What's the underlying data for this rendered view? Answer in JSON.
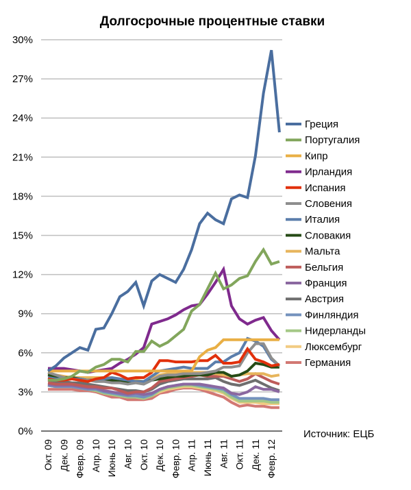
{
  "chart_data": {
    "type": "line",
    "title": "Долгосрочные процентные ставки",
    "xlabel": "",
    "ylabel": "",
    "ylim": [
      0,
      30
    ],
    "yticks": [
      "0%",
      "3%",
      "6%",
      "9%",
      "12%",
      "15%",
      "18%",
      "21%",
      "24%",
      "27%",
      "30%"
    ],
    "ytick_values": [
      0,
      3,
      6,
      9,
      12,
      15,
      18,
      21,
      24,
      27,
      30
    ],
    "xtick_labels": [
      "Окт. 09",
      "Дек. 09",
      "Февр. 09",
      "Апр. 10",
      "Июнь 10",
      "Авг. 10",
      "Окт. 10",
      "Дек. 10",
      "Февр. 10",
      "Апр. 11",
      "Июнь 11",
      "Авг. 11",
      "Окт. 11",
      "Дек. 11",
      "Февр. 12"
    ],
    "xtick_every": 2,
    "n_points": 30,
    "grid": true,
    "legend_position": "right",
    "source": "Источник: ЕЦБ",
    "series": [
      {
        "name": "Греция",
        "color": "#4A6E9F",
        "values": [
          4.6,
          5.0,
          5.6,
          6.0,
          6.4,
          6.2,
          7.8,
          7.9,
          9.0,
          10.3,
          10.7,
          11.4,
          9.6,
          11.5,
          12.0,
          11.7,
          11.4,
          12.4,
          13.9,
          15.9,
          16.7,
          16.2,
          15.9,
          17.8,
          18.1,
          17.9,
          21.1,
          25.9,
          29.2,
          22.9
        ]
      },
      {
        "name": "Португалия",
        "color": "#82A65C",
        "values": [
          3.9,
          3.9,
          4.0,
          4.2,
          4.6,
          4.5,
          4.9,
          5.1,
          5.5,
          5.5,
          5.3,
          6.1,
          6.1,
          6.9,
          6.5,
          6.8,
          7.3,
          7.8,
          9.2,
          9.7,
          10.9,
          12.1,
          10.9,
          11.2,
          11.7,
          11.9,
          13.0,
          13.9,
          12.8,
          13.0
        ]
      },
      {
        "name": "Кипр",
        "color": "#E9AF45",
        "values": [
          4.6,
          4.6,
          4.6,
          4.6,
          4.6,
          4.6,
          4.6,
          4.6,
          4.6,
          4.6,
          4.6,
          4.6,
          4.6,
          4.6,
          4.6,
          4.6,
          4.6,
          4.6,
          4.6,
          5.7,
          6.2,
          6.4,
          7.0,
          7.0,
          7.0,
          7.0,
          7.0,
          7.0,
          7.0,
          7.0
        ]
      },
      {
        "name": "Ирландия",
        "color": "#7F2A8D",
        "values": [
          4.8,
          4.8,
          4.8,
          4.7,
          4.6,
          4.5,
          4.6,
          4.7,
          4.8,
          5.2,
          5.5,
          5.9,
          6.4,
          8.2,
          8.4,
          8.6,
          8.9,
          9.3,
          9.6,
          9.7,
          10.5,
          11.4,
          12.4,
          9.6,
          8.6,
          8.2,
          8.5,
          8.7,
          7.7,
          7.0
        ]
      },
      {
        "name": "Испания",
        "color": "#E1300B",
        "values": [
          4.0,
          3.9,
          3.9,
          4.0,
          3.9,
          3.8,
          4.0,
          4.1,
          4.5,
          4.3,
          4.0,
          4.1,
          4.1,
          4.5,
          5.4,
          5.4,
          5.3,
          5.3,
          5.3,
          5.4,
          5.4,
          5.8,
          5.2,
          5.2,
          5.3,
          6.3,
          5.5,
          5.3,
          5.0,
          5.1
        ]
      },
      {
        "name": "Словения",
        "color": "#8E8E8E",
        "values": [
          4.5,
          4.3,
          4.1,
          4.0,
          3.9,
          3.9,
          3.8,
          3.8,
          3.7,
          3.7,
          3.6,
          3.7,
          3.6,
          3.9,
          4.2,
          4.3,
          4.3,
          4.4,
          4.4,
          4.4,
          4.5,
          4.6,
          4.9,
          4.9,
          5.0,
          6.0,
          6.7,
          6.7,
          5.6,
          5.0
        ]
      },
      {
        "name": "Италия",
        "color": "#5B7EAC",
        "values": [
          4.1,
          4.0,
          4.0,
          4.0,
          4.0,
          3.9,
          3.9,
          4.0,
          4.1,
          4.0,
          3.9,
          3.8,
          3.8,
          4.2,
          4.6,
          4.7,
          4.8,
          4.9,
          4.8,
          4.8,
          4.8,
          5.3,
          5.3,
          5.7,
          6.0,
          7.1,
          6.9,
          6.5,
          5.5,
          5.0
        ]
      },
      {
        "name": "Словакия",
        "color": "#264B16",
        "values": [
          4.3,
          4.2,
          4.1,
          4.1,
          4.0,
          3.9,
          3.9,
          3.9,
          3.9,
          3.8,
          3.8,
          3.8,
          3.8,
          3.9,
          4.0,
          4.1,
          4.2,
          4.2,
          4.3,
          4.3,
          4.3,
          4.5,
          4.5,
          4.2,
          4.3,
          4.6,
          5.2,
          5.1,
          4.9,
          4.9
        ]
      },
      {
        "name": "Мальта",
        "color": "#E7B55C",
        "values": [
          4.4,
          4.3,
          4.2,
          4.1,
          4.1,
          4.1,
          4.1,
          4.1,
          4.1,
          4.0,
          3.9,
          3.9,
          3.8,
          4.0,
          4.3,
          4.4,
          4.4,
          4.5,
          4.5,
          4.5,
          4.5,
          4.4,
          4.3,
          4.2,
          4.3,
          4.4,
          4.4,
          4.4,
          4.2,
          4.3
        ]
      },
      {
        "name": "Бельгия",
        "color": "#BD5B59",
        "values": [
          3.7,
          3.6,
          3.6,
          3.6,
          3.5,
          3.4,
          3.4,
          3.3,
          3.3,
          3.1,
          2.9,
          3.0,
          3.0,
          3.3,
          3.8,
          3.9,
          4.0,
          4.1,
          4.2,
          4.3,
          4.2,
          4.2,
          4.2,
          4.0,
          3.8,
          4.0,
          4.4,
          4.1,
          3.8,
          3.6
        ]
      },
      {
        "name": "Франция",
        "color": "#8B68A0",
        "values": [
          3.6,
          3.5,
          3.5,
          3.5,
          3.4,
          3.3,
          3.3,
          3.1,
          3.0,
          2.9,
          2.8,
          2.9,
          2.8,
          2.9,
          3.2,
          3.4,
          3.5,
          3.6,
          3.6,
          3.6,
          3.5,
          3.4,
          3.3,
          2.9,
          2.8,
          3.0,
          3.4,
          3.2,
          3.2,
          3.0
        ]
      },
      {
        "name": "Австрия",
        "color": "#6E6E6E",
        "values": [
          3.9,
          3.8,
          3.8,
          3.7,
          3.7,
          3.6,
          3.5,
          3.4,
          3.3,
          3.2,
          3.1,
          3.1,
          3.0,
          3.2,
          3.6,
          3.8,
          3.9,
          4.0,
          4.0,
          4.0,
          4.0,
          4.1,
          3.8,
          3.6,
          3.5,
          3.7,
          3.9,
          3.6,
          3.3,
          3.1
        ]
      },
      {
        "name": "Финляндия",
        "color": "#7492BD",
        "values": [
          3.5,
          3.4,
          3.4,
          3.4,
          3.3,
          3.2,
          3.2,
          3.0,
          2.9,
          2.8,
          2.7,
          2.7,
          2.6,
          2.8,
          3.2,
          3.4,
          3.5,
          3.6,
          3.6,
          3.5,
          3.4,
          3.3,
          3.2,
          2.8,
          2.5,
          2.5,
          2.5,
          2.5,
          2.4,
          2.4
        ]
      },
      {
        "name": "Нидерланды",
        "color": "#A4C886",
        "values": [
          3.5,
          3.4,
          3.4,
          3.4,
          3.3,
          3.2,
          3.1,
          2.9,
          2.8,
          2.7,
          2.6,
          2.6,
          2.5,
          2.7,
          3.1,
          3.3,
          3.4,
          3.5,
          3.5,
          3.4,
          3.3,
          3.2,
          3.0,
          2.6,
          2.3,
          2.3,
          2.3,
          2.3,
          2.2,
          2.2
        ]
      },
      {
        "name": "Люксембург",
        "color": "#F2CB82",
        "values": [
          3.5,
          3.4,
          3.4,
          3.4,
          3.3,
          3.2,
          3.1,
          2.9,
          2.8,
          2.7,
          2.6,
          2.6,
          2.5,
          2.7,
          3.0,
          3.2,
          3.3,
          3.4,
          3.4,
          3.3,
          3.2,
          3.1,
          2.9,
          2.5,
          2.2,
          2.2,
          2.2,
          2.1,
          2.1,
          2.1
        ]
      },
      {
        "name": "Германия",
        "color": "#D27873",
        "values": [
          3.2,
          3.2,
          3.2,
          3.2,
          3.1,
          3.1,
          3.0,
          2.8,
          2.6,
          2.6,
          2.4,
          2.4,
          2.4,
          2.5,
          2.9,
          3.0,
          3.2,
          3.3,
          3.3,
          3.2,
          3.0,
          2.8,
          2.6,
          2.2,
          1.9,
          2.0,
          1.9,
          1.9,
          1.8,
          1.8
        ]
      }
    ]
  }
}
